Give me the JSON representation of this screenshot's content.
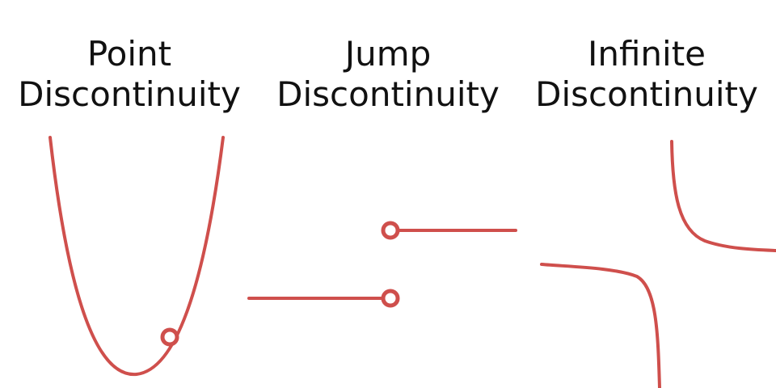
{
  "colors": {
    "curve": "#cf4f4c",
    "text": "#111111",
    "background": "#ffffff"
  },
  "panels": [
    {
      "line1": "Point",
      "line2": "Discontinuity"
    },
    {
      "line1": "Jump",
      "line2": "Discontinuity"
    },
    {
      "line1": "Infinite",
      "line2": "Discontinuity"
    }
  ]
}
